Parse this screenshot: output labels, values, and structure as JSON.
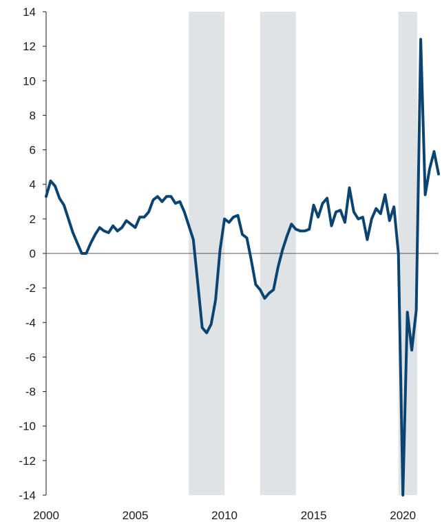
{
  "chart_data": {
    "type": "line",
    "title": "",
    "xlabel": "",
    "ylabel": "",
    "xlim": [
      2000,
      2022
    ],
    "ylim": [
      -14,
      14
    ],
    "x_ticks": [
      2000,
      2005,
      2010,
      2015,
      2020
    ],
    "x_tick_labels": [
      "2000",
      "2005",
      "2010",
      "2015",
      "2020"
    ],
    "y_ticks": [
      14,
      12,
      10,
      8,
      6,
      4,
      2,
      0,
      -2,
      -4,
      -6,
      -8,
      -10,
      -12,
      -14
    ],
    "y_tick_labels": [
      "14",
      "12",
      "10",
      "8",
      "6",
      "4",
      "2",
      "0",
      "-2",
      "-4",
      "-6",
      "-8",
      "-10",
      "-12",
      "-14"
    ],
    "grid": false,
    "shaded_periods": [
      [
        2008.0,
        2010.0
      ],
      [
        2012.0,
        2014.0
      ],
      [
        2019.75,
        2020.8
      ]
    ],
    "colors": {
      "line": "#0b4470",
      "shading": "#dfe3e6",
      "axis": "#1a1a1a",
      "zero_line": "#555555"
    },
    "series": [
      {
        "x": [
          2000.0,
          2000.25,
          2000.5,
          2000.75,
          2001.0,
          2001.25,
          2001.5,
          2001.75,
          2002.0,
          2002.25,
          2002.5,
          2002.75,
          2003.0,
          2003.25,
          2003.5,
          2003.75,
          2004.0,
          2004.25,
          2004.5,
          2004.75,
          2005.0,
          2005.25,
          2005.5,
          2005.75,
          2006.0,
          2006.25,
          2006.5,
          2006.75,
          2007.0,
          2007.25,
          2007.5,
          2007.75,
          2008.0,
          2008.25,
          2008.5,
          2008.75,
          2009.0,
          2009.25,
          2009.5,
          2009.75,
          2010.0,
          2010.25,
          2010.5,
          2010.75,
          2011.0,
          2011.25,
          2011.5,
          2011.75,
          2012.0,
          2012.25,
          2012.5,
          2012.75,
          2013.0,
          2013.25,
          2013.5,
          2013.75,
          2014.0,
          2014.25,
          2014.5,
          2014.75,
          2015.0,
          2015.25,
          2015.5,
          2015.75,
          2016.0,
          2016.25,
          2016.5,
          2016.75,
          2017.0,
          2017.25,
          2017.5,
          2017.75,
          2018.0,
          2018.25,
          2018.5,
          2018.75,
          2019.0,
          2019.25,
          2019.5,
          2019.75,
          2020.0,
          2020.25,
          2020.5,
          2020.75,
          2021.0,
          2021.25,
          2021.5,
          2021.75,
          2022.0
        ],
        "values": [
          3.3,
          4.2,
          3.9,
          3.2,
          2.8,
          2.0,
          1.2,
          0.6,
          0.0,
          0.0,
          0.6,
          1.1,
          1.5,
          1.3,
          1.2,
          1.6,
          1.3,
          1.5,
          1.9,
          1.7,
          1.5,
          2.1,
          2.1,
          2.4,
          3.1,
          3.3,
          3.0,
          3.3,
          3.3,
          2.9,
          3.0,
          2.4,
          1.6,
          0.8,
          -1.7,
          -4.3,
          -4.6,
          -4.1,
          -2.7,
          0.2,
          2.0,
          1.8,
          2.1,
          2.2,
          1.1,
          0.9,
          -0.4,
          -1.8,
          -2.1,
          -2.6,
          -2.3,
          -2.1,
          -0.8,
          0.2,
          1.0,
          1.7,
          1.4,
          1.3,
          1.3,
          1.4,
          2.8,
          2.1,
          2.9,
          3.2,
          1.6,
          2.4,
          2.5,
          1.8,
          3.8,
          2.4,
          2.0,
          2.1,
          0.8,
          2.0,
          2.6,
          2.3,
          3.4,
          1.9,
          2.7,
          0.0,
          -14.0,
          -3.4,
          -5.6,
          -3.3,
          12.4,
          3.4,
          4.9,
          5.9,
          4.6
        ]
      }
    ]
  }
}
